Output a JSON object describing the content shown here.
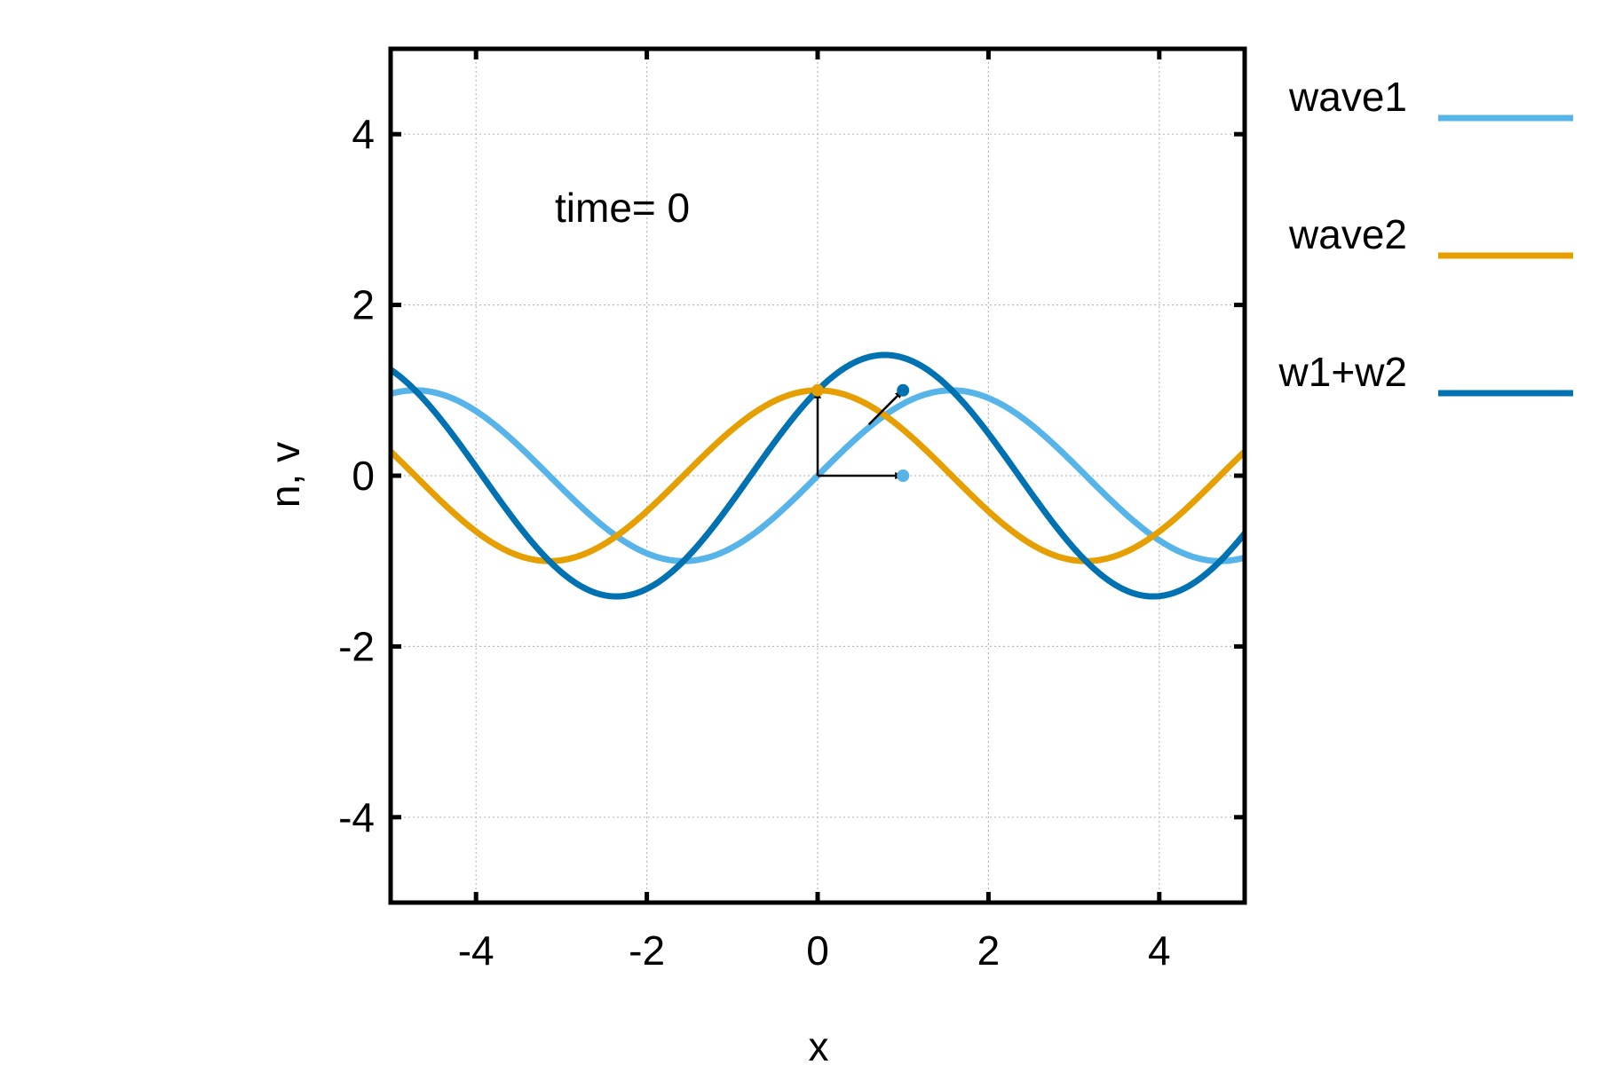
{
  "chart_data": {
    "type": "line",
    "xlabel": "x",
    "ylabel": "n, v",
    "xlim": [
      -5,
      5
    ],
    "ylim": [
      -5,
      5
    ],
    "xticks": [
      -4,
      -2,
      0,
      2,
      4
    ],
    "yticks": [
      -4,
      -2,
      0,
      2,
      4
    ],
    "grid": true,
    "legend_position": "right-outside",
    "annotation": "time=  0",
    "series": [
      {
        "name": "wave1",
        "color": "#56b4e9",
        "function": "sin(x)",
        "x_range": [
          -5,
          5
        ],
        "x": [
          -5,
          -4,
          -3,
          -2,
          -1,
          0,
          1,
          2,
          3,
          4,
          5
        ],
        "values": [
          0.959,
          0.757,
          -0.141,
          -0.909,
          -0.841,
          0.0,
          0.841,
          0.909,
          0.141,
          -0.757,
          -0.959
        ]
      },
      {
        "name": "wave2",
        "color": "#e69f00",
        "function": "cos(x)",
        "x_range": [
          -5,
          5
        ],
        "x": [
          -5,
          -4,
          -3,
          -2,
          -1,
          0,
          1,
          2,
          3,
          4,
          5
        ],
        "values": [
          0.284,
          -0.654,
          -0.99,
          -0.416,
          0.54,
          1.0,
          0.54,
          -0.416,
          -0.99,
          -0.654,
          0.284
        ]
      },
      {
        "name": "w1+w2",
        "color": "#0072b2",
        "function": "sin(x)+cos(x)",
        "x_range": [
          -5,
          5
        ],
        "x": [
          -5,
          -4,
          -3,
          -2,
          -1,
          0,
          1,
          2,
          3,
          4,
          5
        ],
        "values": [
          1.243,
          0.103,
          -1.131,
          -1.325,
          -0.301,
          1.0,
          1.382,
          0.493,
          -0.849,
          -1.41,
          -0.675
        ]
      }
    ],
    "phasor": {
      "origin": [
        0,
        0
      ],
      "vectors": [
        {
          "to": [
            1,
            0
          ],
          "color": "#000000",
          "head_color": "#56b4e9"
        },
        {
          "to": [
            0,
            1
          ],
          "color": "#000000",
          "head_color": "#e69f00"
        },
        {
          "to": [
            1,
            1
          ],
          "color": "#000000",
          "head_color": "#0072b2",
          "from": [
            0.6,
            0.6
          ]
        }
      ]
    }
  }
}
